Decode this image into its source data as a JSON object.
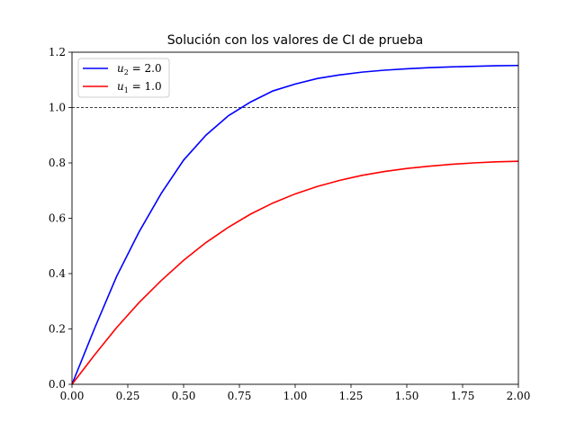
{
  "chart_data": {
    "type": "line",
    "title": "Solución con los valores de CI de prueba",
    "xlabel": "",
    "ylabel": "",
    "xlim": [
      0.0,
      2.0
    ],
    "ylim": [
      0.0,
      1.2
    ],
    "xticks": [
      "0.00",
      "0.25",
      "0.50",
      "0.75",
      "1.00",
      "1.25",
      "1.50",
      "1.75",
      "2.00"
    ],
    "yticks": [
      "0.0",
      "0.2",
      "0.4",
      "0.6",
      "0.8",
      "1.0",
      "1.2"
    ],
    "grid": false,
    "legend_position": "top-left",
    "x": [
      0.0,
      0.1,
      0.2,
      0.3,
      0.4,
      0.5,
      0.6,
      0.7,
      0.8,
      0.9,
      1.0,
      1.1,
      1.2,
      1.3,
      1.4,
      1.5,
      1.6,
      1.7,
      1.8,
      1.9,
      2.0
    ],
    "series": [
      {
        "name": "u_2 = 2.0",
        "color": "#0000ff",
        "values": [
          0.0,
          0.2,
          0.39,
          0.55,
          0.69,
          0.81,
          0.9,
          0.97,
          1.02,
          1.06,
          1.085,
          1.105,
          1.118,
          1.128,
          1.135,
          1.14,
          1.144,
          1.147,
          1.149,
          1.151,
          1.152
        ]
      },
      {
        "name": "u_1 = 1.0",
        "color": "#ff0000",
        "values": [
          0.0,
          0.105,
          0.205,
          0.295,
          0.375,
          0.448,
          0.512,
          0.567,
          0.615,
          0.655,
          0.688,
          0.715,
          0.737,
          0.755,
          0.769,
          0.78,
          0.788,
          0.795,
          0.8,
          0.804,
          0.806
        ]
      }
    ],
    "reference_line": {
      "y": 1.0,
      "style": "dashed",
      "color": "#000000"
    },
    "legend": [
      {
        "prefix": "u",
        "sub": "2",
        "rest": " = 2.0",
        "color": "#0000ff"
      },
      {
        "prefix": "u",
        "sub": "1",
        "rest": " = 1.0",
        "color": "#ff0000"
      }
    ]
  }
}
